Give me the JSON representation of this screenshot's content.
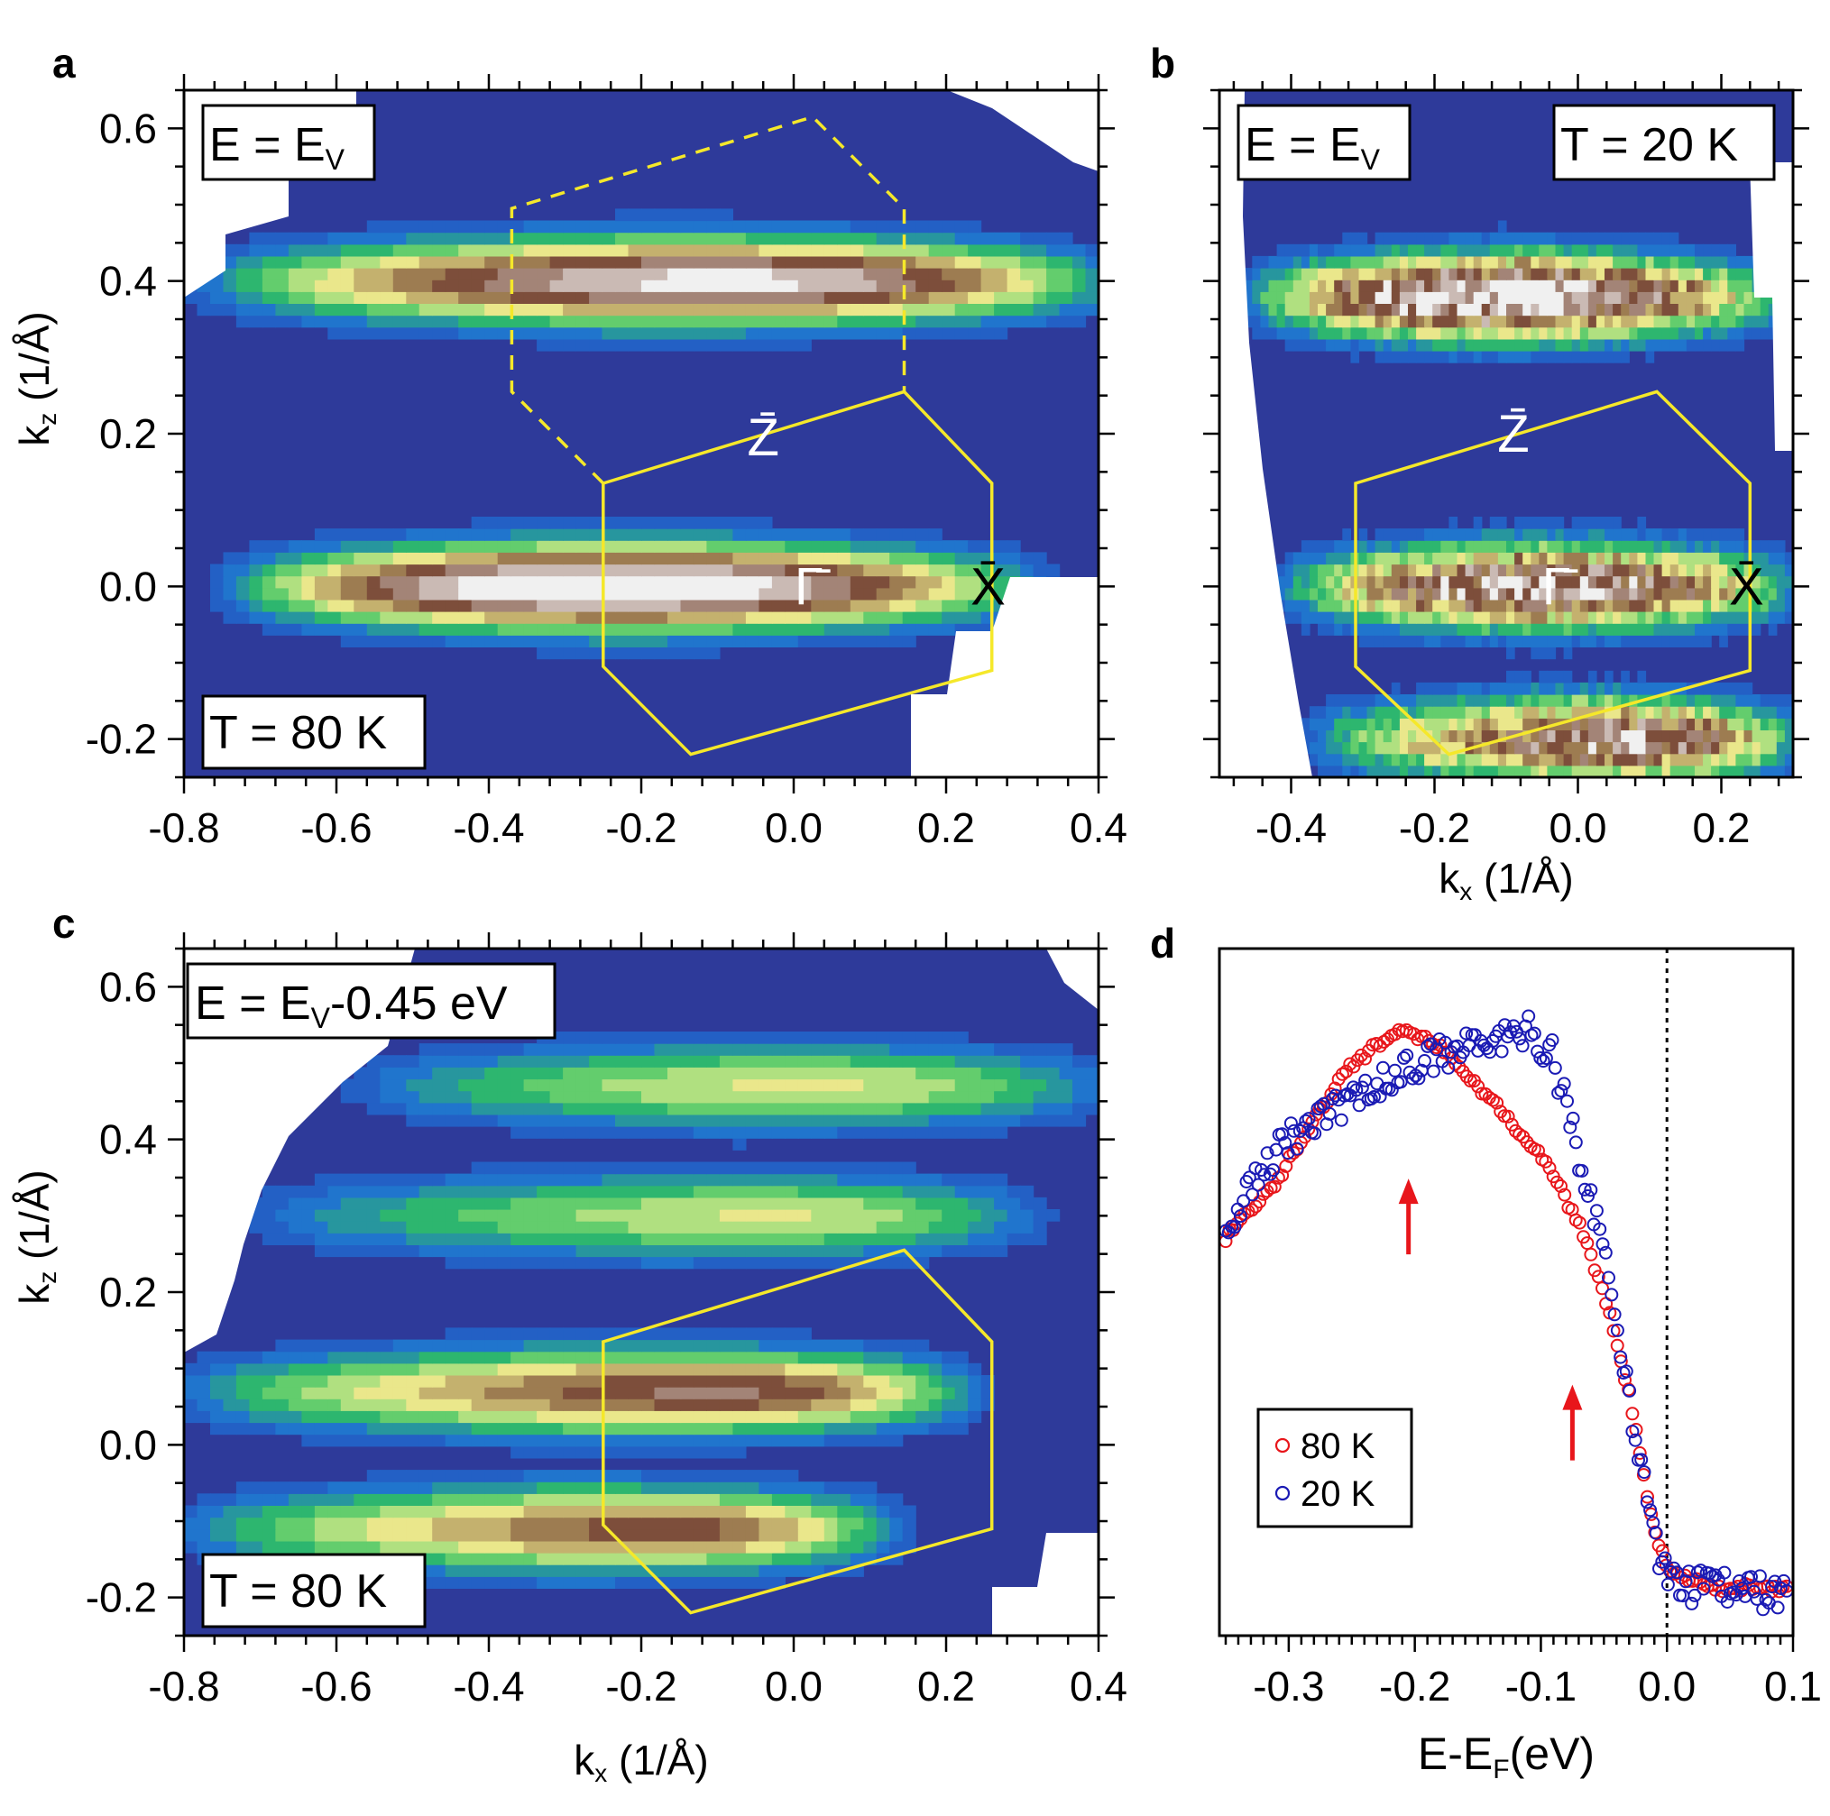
{
  "figure": {
    "panels": [
      {
        "id": "a",
        "letter": "a",
        "xlabel": "",
        "ylabel": "k_z (1/Å)",
        "tags": [
          {
            "text": "E = E_V"
          },
          {
            "text": "T = 80 K"
          }
        ],
        "points": [
          {
            "label": "Z̄"
          },
          {
            "label": "Γ̄"
          },
          {
            "label": "X̄"
          }
        ]
      },
      {
        "id": "b",
        "letter": "b",
        "xlabel": "k_x (1/Å)",
        "ylabel": "",
        "tags": [
          {
            "text": "E = E_V"
          },
          {
            "text": "T = 20 K"
          }
        ],
        "points": [
          {
            "label": "Z̄"
          },
          {
            "label": "Γ̄"
          },
          {
            "label": "X̄"
          }
        ]
      },
      {
        "id": "c",
        "letter": "c",
        "xlabel": "k_x (1/Å)",
        "ylabel": "k_z (1/Å)",
        "tags": [
          {
            "text": "E = E_V-0.45 eV"
          },
          {
            "text": "T = 80 K"
          }
        ],
        "points": []
      },
      {
        "id": "d",
        "letter": "d",
        "xlabel": "E-E_F(eV)",
        "ylabel": "",
        "tags": [],
        "points": []
      }
    ]
  },
  "chart_data": [
    {
      "panel": "a",
      "type": "heatmap",
      "title": "",
      "xlabel": "k_x (1/Å)",
      "ylabel": "k_z (1/Å)",
      "xlim": [
        -0.8,
        0.4
      ],
      "ylim": [
        -0.25,
        0.65
      ],
      "xticks": [
        "-0.8",
        "-0.6",
        "-0.4",
        "-0.2",
        "0.0",
        "0.2",
        "0.4"
      ],
      "yticks": [
        "-0.2",
        "0.0",
        "0.2",
        "0.4",
        "0.6"
      ],
      "colormap": [
        "#2e3a9a",
        "#1f6fd6",
        "#2fc060",
        "#f0f090",
        "#7a4a36",
        "#f0f0f0"
      ],
      "bands": [
        {
          "kz": 0.4,
          "kx_from": -0.75,
          "kx_to": 0.4,
          "peak_kx": -0.09,
          "peak_intensity": 0.9
        },
        {
          "kz": 0.0,
          "kx_from": -0.72,
          "kx_to": 0.3,
          "peak_kx": -0.25,
          "peak_intensity": 1.0
        }
      ],
      "brillouin_zone": [
        [
          -0.25,
          0.135
        ],
        [
          0.145,
          0.255
        ],
        [
          0.26,
          0.135
        ],
        [
          0.26,
          -0.11
        ],
        [
          -0.135,
          -0.22
        ],
        [
          -0.25,
          -0.105
        ]
      ],
      "brillouin_zone_dashed": [
        [
          -0.25,
          0.135
        ],
        [
          -0.37,
          0.255
        ],
        [
          -0.37,
          0.495
        ],
        [
          0.025,
          0.615
        ],
        [
          0.145,
          0.495
        ],
        [
          0.145,
          0.255
        ]
      ],
      "points": [
        {
          "label": "Z̄",
          "kx": -0.04,
          "kz": 0.195
        },
        {
          "label": "Γ̄",
          "kx": 0.02,
          "kz": 0.0
        },
        {
          "label": "X̄",
          "kx": 0.255,
          "kz": 0.0
        }
      ]
    },
    {
      "panel": "b",
      "type": "heatmap",
      "title": "",
      "xlabel": "k_x (1/Å)",
      "ylabel": "",
      "xlim": [
        -0.5,
        0.3
      ],
      "ylim": [
        -0.25,
        0.65
      ],
      "xticks": [
        "-0.4",
        "-0.2",
        "0.0",
        "0.2"
      ],
      "yticks": [],
      "bands": [
        {
          "kz": 0.38,
          "kx_from": -0.45,
          "kx_to": 0.28,
          "peak_kx": -0.11,
          "peak_intensity": 0.95
        },
        {
          "kz": 0.0,
          "kx_from": -0.4,
          "kx_to": 0.3,
          "peak_kx": -0.05,
          "peak_intensity": 0.85
        },
        {
          "kz": -0.2,
          "kx_from": -0.36,
          "kx_to": 0.3,
          "peak_kx": 0.1,
          "peak_intensity": 0.8
        }
      ],
      "brillouin_zone": [
        [
          -0.31,
          0.135
        ],
        [
          0.11,
          0.255
        ],
        [
          0.24,
          0.135
        ],
        [
          0.24,
          -0.11
        ],
        [
          -0.18,
          -0.22
        ],
        [
          -0.31,
          -0.105
        ]
      ],
      "points": [
        {
          "label": "Z̄",
          "kx": -0.09,
          "kz": 0.2
        },
        {
          "label": "Γ̄",
          "kx": -0.03,
          "kz": 0.0
        },
        {
          "label": "X̄",
          "kx": 0.235,
          "kz": 0.0
        }
      ]
    },
    {
      "panel": "c",
      "type": "heatmap",
      "title": "",
      "xlabel": "k_x (1/Å)",
      "ylabel": "k_z (1/Å)",
      "xlim": [
        -0.8,
        0.4
      ],
      "ylim": [
        -0.25,
        0.65
      ],
      "xticks": [
        "-0.8",
        "-0.6",
        "-0.4",
        "-0.2",
        "0.0",
        "0.2",
        "0.4"
      ],
      "yticks": [
        "-0.2",
        "0.0",
        "0.2",
        "0.4",
        "0.6"
      ],
      "bands": [
        {
          "kz": 0.07,
          "kx_from": -0.78,
          "kx_to": 0.22,
          "peak_kx": -0.07,
          "peak_intensity": 0.75
        },
        {
          "kz": -0.11,
          "kx_from": -0.78,
          "kx_to": 0.12,
          "peak_kx": -0.14,
          "peak_intensity": 0.7
        },
        {
          "kz": 0.3,
          "kx_from": -0.68,
          "kx_to": 0.3,
          "peak_kx": 0.0,
          "peak_intensity": 0.45
        },
        {
          "kz": 0.47,
          "kx_from": -0.55,
          "kx_to": 0.4,
          "peak_kx": 0.02,
          "peak_intensity": 0.45
        }
      ],
      "brillouin_zone": [
        [
          -0.25,
          0.135
        ],
        [
          0.145,
          0.255
        ],
        [
          0.26,
          0.135
        ],
        [
          0.26,
          -0.11
        ],
        [
          -0.135,
          -0.22
        ],
        [
          -0.25,
          -0.105
        ]
      ]
    },
    {
      "panel": "d",
      "type": "scatter",
      "title": "",
      "xlabel": "E-E_F(eV)",
      "ylabel": "",
      "xlim": [
        -0.355,
        0.1
      ],
      "ylim": [
        0,
        1
      ],
      "xticks": [
        "-0.3",
        "-0.2",
        "-0.1",
        "0.0",
        "0.1"
      ],
      "fermi_level": 0.0,
      "legend": {
        "position": "lower-left",
        "entries": [
          "80 K",
          "20 K"
        ]
      },
      "series": [
        {
          "name": "80 K",
          "color": "#e8161b",
          "marker": "open-circle",
          "x": [
            -0.35,
            -0.33,
            -0.31,
            -0.29,
            -0.27,
            -0.25,
            -0.23,
            -0.21,
            -0.19,
            -0.17,
            -0.15,
            -0.13,
            -0.11,
            -0.09,
            -0.07,
            -0.05,
            -0.04,
            -0.03,
            -0.02,
            -0.01,
            0.0,
            0.02,
            0.04,
            0.06,
            0.08,
            0.1
          ],
          "y": [
            0.58,
            0.62,
            0.66,
            0.72,
            0.78,
            0.83,
            0.86,
            0.88,
            0.87,
            0.84,
            0.8,
            0.76,
            0.72,
            0.67,
            0.6,
            0.5,
            0.43,
            0.35,
            0.25,
            0.15,
            0.1,
            0.08,
            0.07,
            0.07,
            0.07,
            0.07
          ]
        },
        {
          "name": "20 K",
          "color": "#1a1ab4",
          "marker": "open-circle",
          "x": [
            -0.35,
            -0.33,
            -0.31,
            -0.29,
            -0.27,
            -0.25,
            -0.23,
            -0.21,
            -0.19,
            -0.17,
            -0.15,
            -0.13,
            -0.11,
            -0.09,
            -0.07,
            -0.06,
            -0.05,
            -0.04,
            -0.03,
            -0.02,
            -0.01,
            0.0,
            0.02,
            0.04,
            0.06,
            0.08,
            0.1
          ],
          "y": [
            0.6,
            0.65,
            0.7,
            0.74,
            0.76,
            0.78,
            0.8,
            0.82,
            0.84,
            0.85,
            0.86,
            0.87,
            0.88,
            0.84,
            0.7,
            0.63,
            0.56,
            0.45,
            0.35,
            0.24,
            0.14,
            0.08,
            0.07,
            0.07,
            0.07,
            0.06,
            0.07
          ]
        }
      ],
      "arrows": [
        {
          "x": -0.205,
          "y": 0.66,
          "color": "#e8161b"
        },
        {
          "x": -0.075,
          "y": 0.36,
          "color": "#e8161b"
        }
      ]
    }
  ]
}
